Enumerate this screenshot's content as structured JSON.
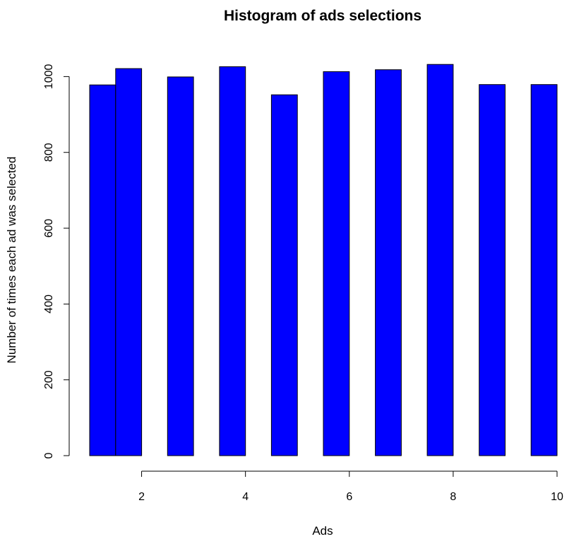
{
  "chart_data": {
    "type": "bar",
    "title": "Histogram of ads selections",
    "xlabel": "Ads",
    "ylabel": "Number of times each ad was selected",
    "xlim": [
      1,
      10
    ],
    "ylim": [
      0,
      1050
    ],
    "x_ticks": [
      2,
      4,
      6,
      8,
      10
    ],
    "y_ticks": [
      0,
      200,
      400,
      600,
      800,
      1000
    ],
    "bins": [
      {
        "start": 1.0,
        "end": 1.5,
        "value": 978
      },
      {
        "start": 1.5,
        "end": 2.0,
        "value": 1021
      },
      {
        "start": 2.5,
        "end": 3.0,
        "value": 999
      },
      {
        "start": 3.5,
        "end": 4.0,
        "value": 1026
      },
      {
        "start": 4.5,
        "end": 5.0,
        "value": 952
      },
      {
        "start": 5.5,
        "end": 6.0,
        "value": 1013
      },
      {
        "start": 6.5,
        "end": 7.0,
        "value": 1018
      },
      {
        "start": 7.5,
        "end": 8.0,
        "value": 1032
      },
      {
        "start": 8.5,
        "end": 9.0,
        "value": 979
      },
      {
        "start": 9.5,
        "end": 10.0,
        "value": 979
      }
    ],
    "bar_color": "#0000ff",
    "grid": false,
    "legend": "none"
  }
}
